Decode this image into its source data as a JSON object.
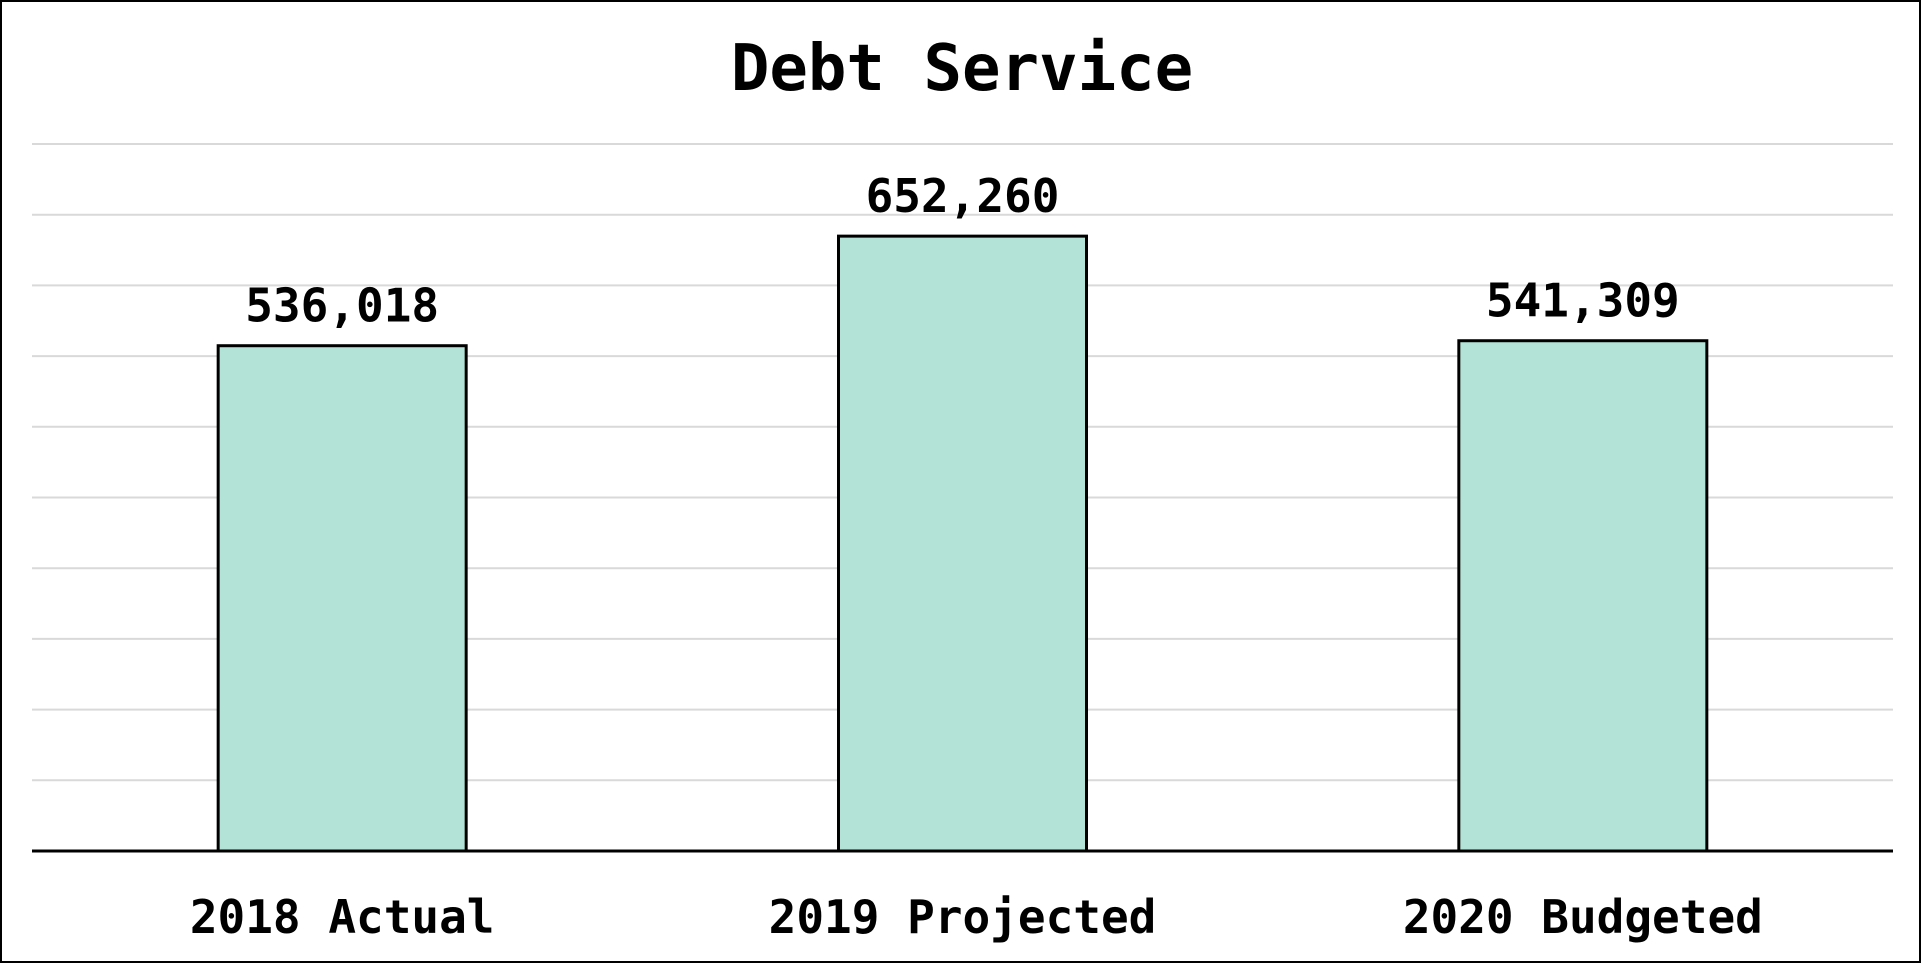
{
  "chart_data": {
    "type": "bar",
    "title": "Debt Service",
    "categories": [
      "2018 Actual",
      "2019 Projected",
      "2020 Budgeted"
    ],
    "values": [
      536018,
      652260,
      541309
    ],
    "value_labels": [
      "536,018",
      "652,260",
      "541,309"
    ],
    "ylim": [
      0,
      750000
    ],
    "grid": true,
    "legend": "none",
    "colors": {
      "bar_fill": "#b3e3d6",
      "bar_stroke": "#000000",
      "gridline": "#d9d9d9",
      "axis": "#000000"
    }
  }
}
